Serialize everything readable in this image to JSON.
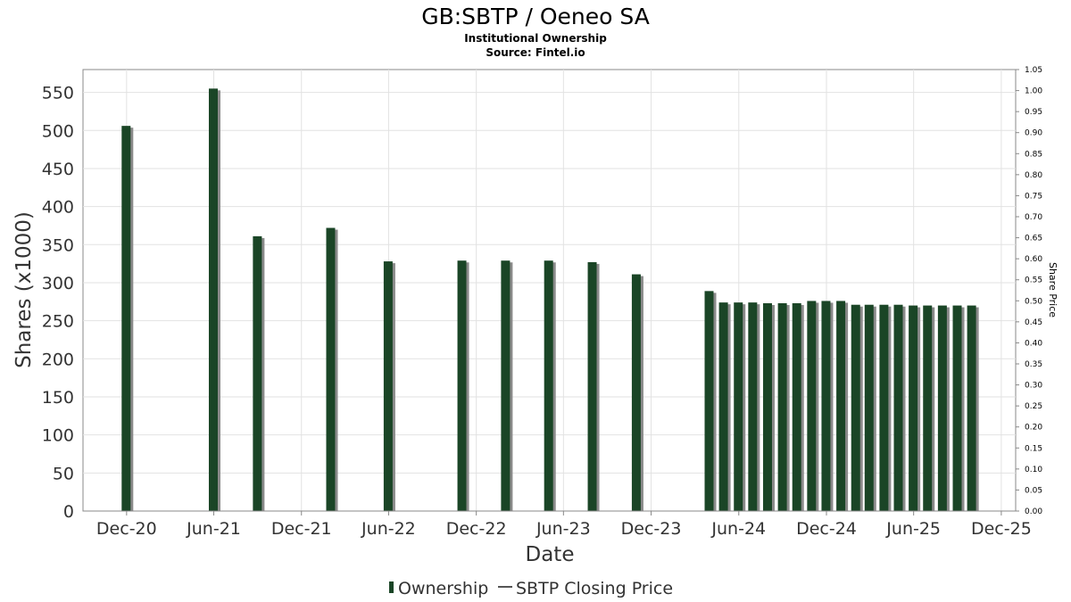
{
  "chart_data": {
    "type": "bar",
    "title": "GB:SBTP / Oeneo SA",
    "subtitle_lines": [
      "Institutional Ownership",
      "Source: Fintel.io"
    ],
    "xlabel": "Date",
    "ylabel": "Shares (x1000)",
    "y2label": "Share Price",
    "ylim": [
      0,
      580
    ],
    "y2lim": [
      0,
      1.05
    ],
    "x_range": [
      "2020-09-01",
      "2025-12-31"
    ],
    "yticks": [
      0,
      50,
      100,
      150,
      200,
      250,
      300,
      350,
      400,
      450,
      500,
      550
    ],
    "y2ticks": [
      "0.00",
      "0.05",
      "0.10",
      "0.15",
      "0.20",
      "0.25",
      "0.30",
      "0.35",
      "0.40",
      "0.45",
      "0.50",
      "0.55",
      "0.60",
      "0.65",
      "0.70",
      "0.75",
      "0.80",
      "0.85",
      "0.90",
      "0.95",
      "1.00",
      "1.05"
    ],
    "xticks": [
      {
        "date": "2020-12-01",
        "label": "Dec-20"
      },
      {
        "date": "2021-06-01",
        "label": "Jun-21"
      },
      {
        "date": "2021-12-01",
        "label": "Dec-21"
      },
      {
        "date": "2022-06-01",
        "label": "Jun-22"
      },
      {
        "date": "2022-12-01",
        "label": "Dec-22"
      },
      {
        "date": "2023-06-01",
        "label": "Jun-23"
      },
      {
        "date": "2023-12-01",
        "label": "Dec-23"
      },
      {
        "date": "2024-06-01",
        "label": "Jun-24"
      },
      {
        "date": "2024-12-01",
        "label": "Dec-24"
      },
      {
        "date": "2025-06-01",
        "label": "Jun-25"
      },
      {
        "date": "2025-12-01",
        "label": "Dec-25"
      }
    ],
    "grid": true,
    "legend_position": "bottom",
    "series": [
      {
        "name": "Ownership",
        "color": "#1a4526",
        "points": [
          {
            "x": "2020-11-30",
            "y": 506
          },
          {
            "x": "2021-05-31",
            "y": 555
          },
          {
            "x": "2021-08-31",
            "y": 361
          },
          {
            "x": "2022-01-31",
            "y": 372
          },
          {
            "x": "2022-05-31",
            "y": 328
          },
          {
            "x": "2022-11-01",
            "y": 329
          },
          {
            "x": "2023-01-31",
            "y": 329
          },
          {
            "x": "2023-05-01",
            "y": 329
          },
          {
            "x": "2023-07-31",
            "y": 327
          },
          {
            "x": "2023-10-31",
            "y": 311
          },
          {
            "x": "2024-03-31",
            "y": 289
          },
          {
            "x": "2024-04-30",
            "y": 274
          },
          {
            "x": "2024-05-31",
            "y": 274
          },
          {
            "x": "2024-06-30",
            "y": 274
          },
          {
            "x": "2024-07-31",
            "y": 273
          },
          {
            "x": "2024-08-31",
            "y": 273
          },
          {
            "x": "2024-09-30",
            "y": 273
          },
          {
            "x": "2024-10-31",
            "y": 276
          },
          {
            "x": "2024-11-30",
            "y": 276
          },
          {
            "x": "2024-12-31",
            "y": 276
          },
          {
            "x": "2025-01-31",
            "y": 271
          },
          {
            "x": "2025-02-28",
            "y": 271
          },
          {
            "x": "2025-03-31",
            "y": 271
          },
          {
            "x": "2025-04-30",
            "y": 271
          },
          {
            "x": "2025-05-31",
            "y": 270
          },
          {
            "x": "2025-06-30",
            "y": 270
          },
          {
            "x": "2025-07-31",
            "y": 270
          },
          {
            "x": "2025-08-31",
            "y": 270
          },
          {
            "x": "2025-09-30",
            "y": 270
          }
        ]
      },
      {
        "name": "SBTP Closing Price",
        "color": "#555555",
        "points": []
      }
    ]
  }
}
